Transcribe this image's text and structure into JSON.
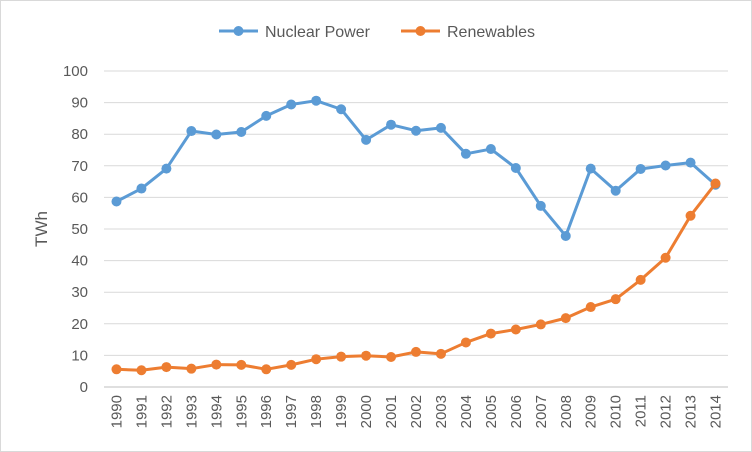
{
  "chart_data": {
    "type": "line",
    "title": "",
    "xlabel": "",
    "ylabel": "TWh",
    "ylim": [
      0,
      100
    ],
    "yticks": [
      0,
      10,
      20,
      30,
      40,
      50,
      60,
      70,
      80,
      90,
      100
    ],
    "grid": "horizontal",
    "legend": "top",
    "categories": [
      "1990",
      "1991",
      "1992",
      "1993",
      "1994",
      "1995",
      "1996",
      "1997",
      "1998",
      "1999",
      "2000",
      "2001",
      "2002",
      "2003",
      "2004",
      "2005",
      "2006",
      "2007",
      "2008",
      "2009",
      "2010",
      "2011",
      "2012",
      "2013",
      "2014"
    ],
    "series": [
      {
        "name": "Nuclear Power",
        "color": "#5b9bd5",
        "values": [
          58.7,
          62.8,
          69.1,
          81.0,
          79.9,
          80.7,
          85.8,
          89.4,
          90.6,
          87.9,
          78.2,
          83.0,
          81.1,
          82.0,
          73.8,
          75.3,
          69.3,
          57.3,
          47.8,
          69.1,
          62.1,
          69.0,
          70.1,
          71.0,
          64.0
        ]
      },
      {
        "name": "Renewables",
        "color": "#ed7d31",
        "values": [
          5.6,
          5.3,
          6.3,
          5.8,
          7.1,
          7.0,
          5.6,
          7.0,
          8.8,
          9.6,
          9.9,
          9.5,
          11.1,
          10.5,
          14.1,
          16.9,
          18.2,
          19.8,
          21.8,
          25.3,
          27.8,
          33.9,
          40.9,
          54.2,
          64.4
        ]
      }
    ]
  }
}
